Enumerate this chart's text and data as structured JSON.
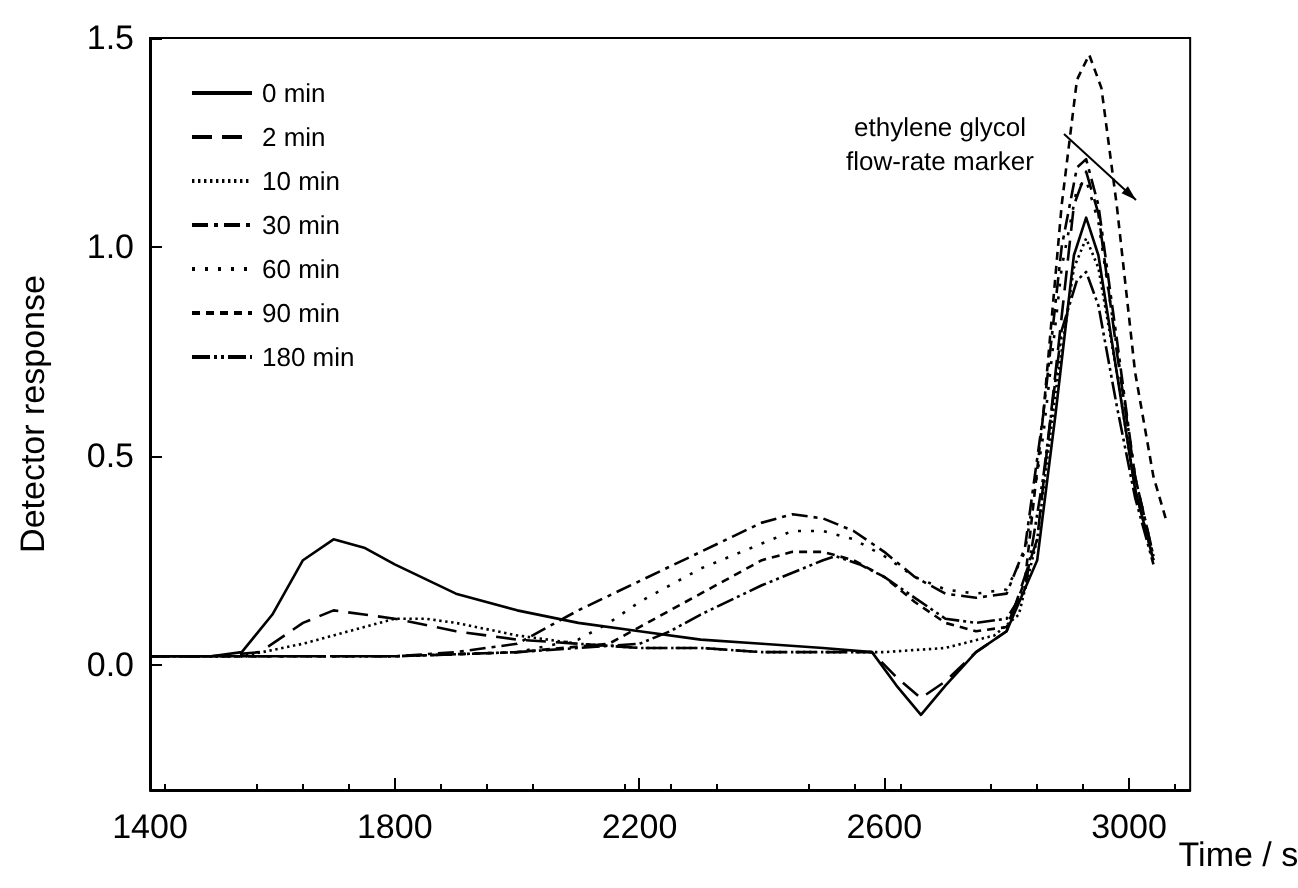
{
  "chart_data": {
    "type": "line",
    "xlabel": "Time / s",
    "ylabel": "Detector response",
    "xlim": [
      1400,
      3100
    ],
    "xticks": [
      1400,
      1800,
      2200,
      2600,
      3000
    ],
    "ylim": [
      -0.3,
      1.5
    ],
    "yticks": [
      {
        "value": 0,
        "label": "0.0"
      },
      {
        "value": 0.5,
        "label": "0.5"
      },
      {
        "value": 1,
        "label": "1.0"
      },
      {
        "value": 1.5,
        "label": "1.5"
      }
    ],
    "grid": false,
    "legend": "top left",
    "marker": "none",
    "annotations": [
      "ethylene glycol\nflow-rate marker"
    ],
    "series": [
      {
        "name": "0 min",
        "color": "#000000",
        "line_style": "solid",
        "x": [
          1400,
          1500,
          1550,
          1600,
          1650,
          1700,
          1750,
          1800,
          1900,
          2000,
          2100,
          2200,
          2300,
          2400,
          2500,
          2580,
          2620,
          2660,
          2700,
          2750,
          2800,
          2850,
          2880,
          2910,
          2930,
          2950,
          2980,
          3010,
          3040
        ],
        "values": [
          0.02,
          0.02,
          0.03,
          0.12,
          0.25,
          0.3,
          0.28,
          0.24,
          0.17,
          0.13,
          0.1,
          0.08,
          0.06,
          0.05,
          0.04,
          0.03,
          -0.05,
          -0.12,
          -0.05,
          0.03,
          0.08,
          0.25,
          0.6,
          0.98,
          1.07,
          0.98,
          0.7,
          0.42,
          0.25
        ]
      },
      {
        "name": "2 min",
        "color": "#000000",
        "line_style": "dashed",
        "x": [
          1400,
          1500,
          1580,
          1650,
          1700,
          1750,
          1800,
          1900,
          2000,
          2100,
          2200,
          2300,
          2400,
          2500,
          2580,
          2620,
          2660,
          2700,
          2750,
          2800,
          2850,
          2880,
          2910,
          2930,
          2950,
          2980,
          3010,
          3040
        ],
        "values": [
          0.02,
          0.02,
          0.03,
          0.1,
          0.13,
          0.12,
          0.11,
          0.08,
          0.06,
          0.05,
          0.04,
          0.04,
          0.03,
          0.03,
          0.03,
          -0.03,
          -0.08,
          -0.04,
          0.03,
          0.08,
          0.3,
          0.7,
          1.1,
          1.18,
          1.08,
          0.75,
          0.45,
          0.26
        ]
      },
      {
        "name": "10 min",
        "color": "#000000",
        "line_style": "dotted",
        "x": [
          1400,
          1550,
          1650,
          1750,
          1800,
          1850,
          1900,
          2000,
          2100,
          2200,
          2300,
          2400,
          2500,
          2600,
          2700,
          2780,
          2820,
          2850,
          2880,
          2910,
          2930,
          2950,
          2980,
          3010,
          3040
        ],
        "values": [
          0.02,
          0.02,
          0.05,
          0.09,
          0.11,
          0.11,
          0.1,
          0.07,
          0.05,
          0.04,
          0.04,
          0.03,
          0.03,
          0.03,
          0.04,
          0.07,
          0.12,
          0.3,
          0.65,
          0.95,
          1.02,
          0.95,
          0.7,
          0.42,
          0.25
        ]
      },
      {
        "name": "30 min",
        "color": "#000000",
        "line_style": "dashdot",
        "x": [
          1400,
          1600,
          1800,
          1900,
          2000,
          2050,
          2100,
          2200,
          2300,
          2400,
          2450,
          2500,
          2550,
          2600,
          2650,
          2700,
          2750,
          2800,
          2830,
          2860,
          2890,
          2915,
          2930,
          2950,
          2980,
          3010,
          3040
        ],
        "values": [
          0.02,
          0.02,
          0.02,
          0.03,
          0.05,
          0.09,
          0.13,
          0.2,
          0.27,
          0.34,
          0.36,
          0.35,
          0.32,
          0.27,
          0.21,
          0.17,
          0.16,
          0.17,
          0.28,
          0.6,
          1.0,
          1.19,
          1.21,
          1.1,
          0.78,
          0.45,
          0.26
        ]
      },
      {
        "name": "60 min",
        "color": "#000000",
        "line_style": "loosely dotted",
        "x": [
          1400,
          1600,
          1800,
          2000,
          2100,
          2150,
          2200,
          2300,
          2400,
          2450,
          2500,
          2550,
          2600,
          2650,
          2700,
          2750,
          2800,
          2830,
          2860,
          2890,
          2915,
          2930,
          2950,
          2980,
          3010,
          3040
        ],
        "values": [
          0.02,
          0.02,
          0.02,
          0.03,
          0.06,
          0.1,
          0.15,
          0.23,
          0.29,
          0.32,
          0.32,
          0.3,
          0.26,
          0.21,
          0.18,
          0.17,
          0.18,
          0.27,
          0.55,
          0.95,
          1.14,
          1.16,
          1.06,
          0.76,
          0.45,
          0.26
        ]
      },
      {
        "name": "90 min",
        "color": "#000000",
        "line_style": "short dashed",
        "x": [
          1400,
          1600,
          1800,
          2000,
          2150,
          2200,
          2300,
          2400,
          2450,
          2500,
          2550,
          2600,
          2650,
          2700,
          2750,
          2800,
          2830,
          2860,
          2890,
          2915,
          2935,
          2955,
          2980,
          3010,
          3040,
          3060
        ],
        "values": [
          0.02,
          0.02,
          0.02,
          0.03,
          0.05,
          0.09,
          0.17,
          0.25,
          0.27,
          0.27,
          0.25,
          0.21,
          0.15,
          0.1,
          0.08,
          0.09,
          0.2,
          0.6,
          1.1,
          1.4,
          1.46,
          1.38,
          1.1,
          0.7,
          0.45,
          0.35
        ]
      },
      {
        "name": "180 min",
        "color": "#000000",
        "line_style": "dashdotdot",
        "x": [
          1400,
          1600,
          1800,
          2000,
          2200,
          2250,
          2300,
          2400,
          2500,
          2520,
          2560,
          2600,
          2650,
          2700,
          2750,
          2800,
          2830,
          2860,
          2890,
          2915,
          2930,
          2950,
          2980,
          3010,
          3040
        ],
        "values": [
          0.02,
          0.02,
          0.02,
          0.03,
          0.05,
          0.08,
          0.12,
          0.19,
          0.25,
          0.26,
          0.24,
          0.21,
          0.16,
          0.11,
          0.1,
          0.11,
          0.18,
          0.45,
          0.8,
          0.92,
          0.94,
          0.86,
          0.62,
          0.4,
          0.24
        ]
      }
    ]
  }
}
